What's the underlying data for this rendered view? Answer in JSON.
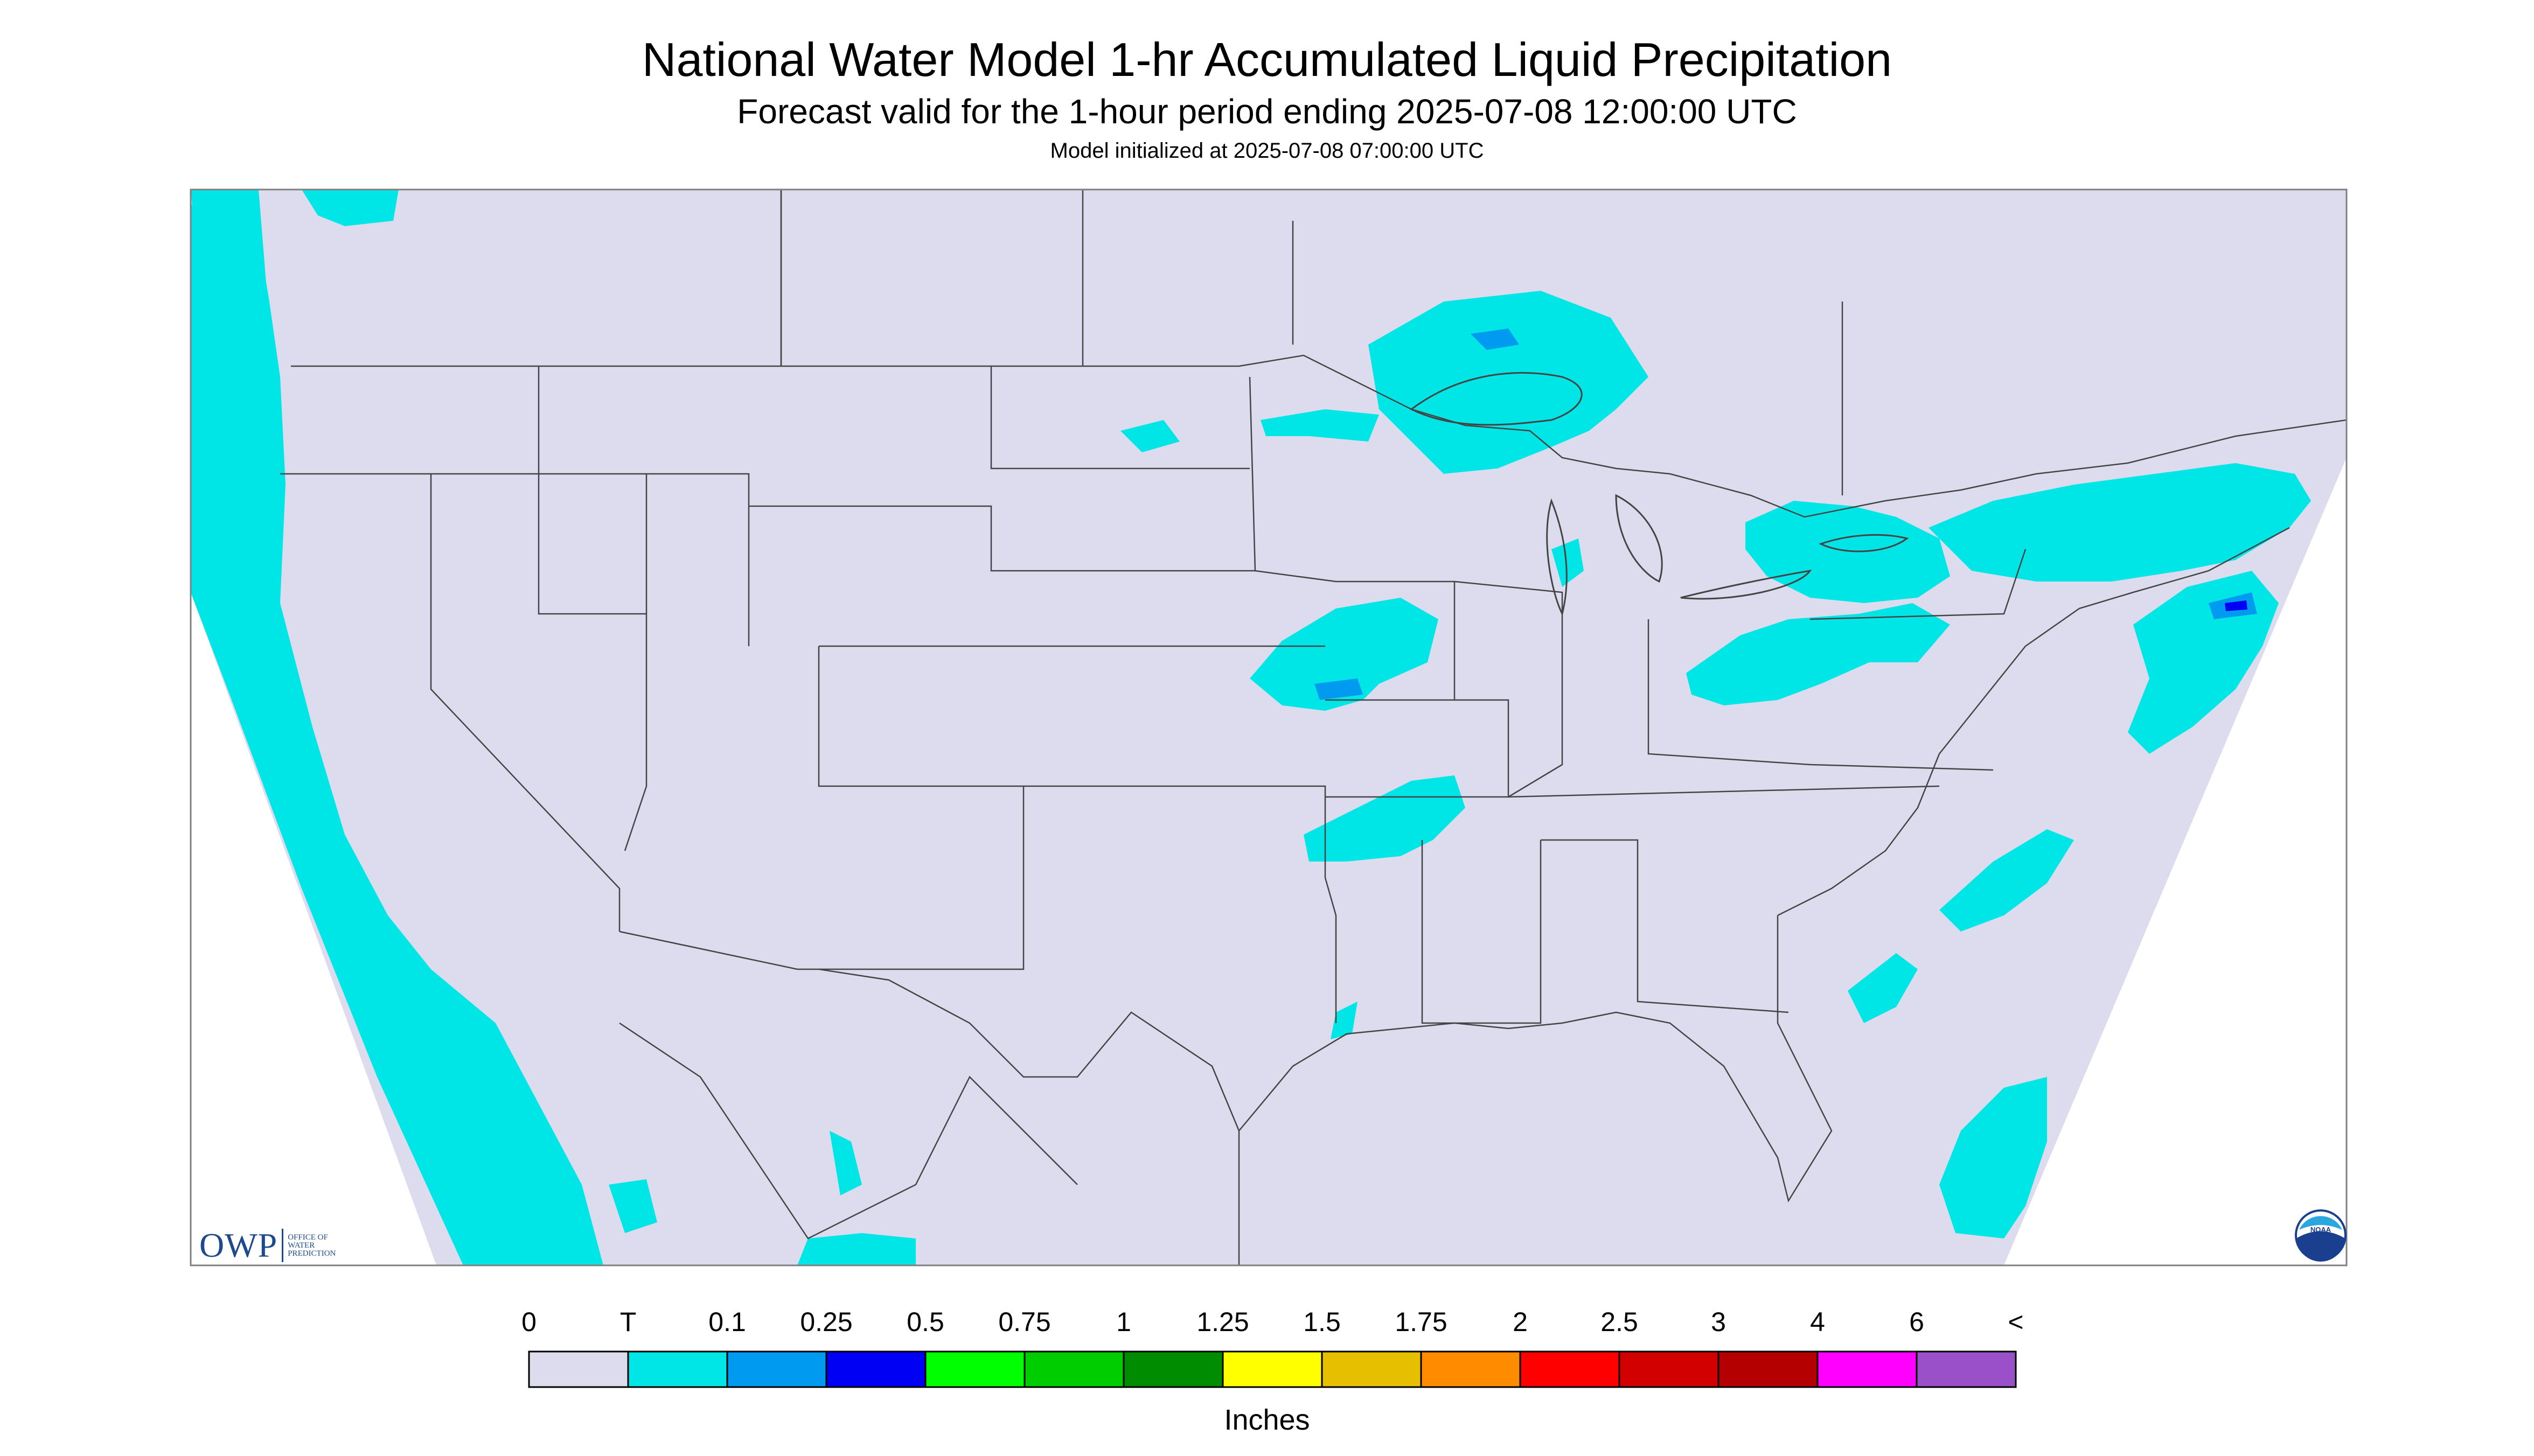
{
  "title": "National Water Model 1-hr Accumulated Liquid Precipitation",
  "subtitle": "Forecast valid for the 1-hour period ending 2025-07-08 12:00:00 UTC",
  "init_line": "Model initialized at 2025-07-08 07:00:00 UTC",
  "legend": {
    "units": "Inches",
    "labels": [
      "0",
      "T",
      "0.1",
      "0.25",
      "0.5",
      "0.75",
      "1",
      "1.25",
      "1.5",
      "1.75",
      "2",
      "2.5",
      "3",
      "4",
      "6",
      "<"
    ],
    "colors": [
      "#dcdcee",
      "#00e6e6",
      "#009bf0",
      "#0000f5",
      "#00ff00",
      "#00cd00",
      "#008c00",
      "#ffff00",
      "#e6c000",
      "#ff8c00",
      "#ff0000",
      "#d20000",
      "#b40000",
      "#ff00ff",
      "#9a50c8"
    ]
  },
  "logos": {
    "owp_mark": "OWP",
    "owp_text": [
      "OFFICE OF",
      "WATER",
      "PREDICTION"
    ],
    "noaa": "NOAA"
  },
  "map": {
    "background_color": "#dcdcee",
    "precip_color": "#00e6e6",
    "heavy_color": "#009bf0",
    "core_color": "#0000f5",
    "boundary_color": "#444444"
  }
}
